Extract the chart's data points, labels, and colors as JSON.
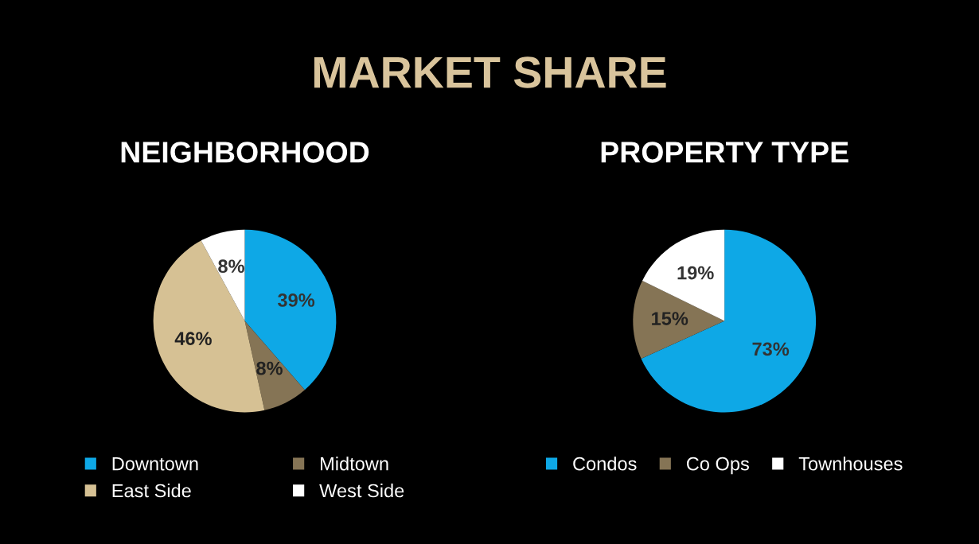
{
  "chart_data": [
    {
      "type": "pie",
      "title": "NEIGHBORHOOD",
      "annotations": [
        "MARKET SHARE"
      ],
      "categories": [
        "Downtown",
        "Midtown",
        "East Side",
        "West Side"
      ],
      "values": [
        39,
        8,
        46,
        8
      ],
      "value_labels": [
        "39%",
        "8%",
        "46%",
        "8%"
      ],
      "colors": [
        "#0ea8e6",
        "#857455",
        "#d6c194",
        "#ffffff"
      ],
      "legend": "bottom"
    },
    {
      "type": "pie",
      "title": "PROPERTY TYPE",
      "categories": [
        "Condos",
        "Co Ops",
        "Townhouses"
      ],
      "values": [
        73,
        15,
        19
      ],
      "value_labels": [
        "73%",
        "15%",
        "19%"
      ],
      "colors": [
        "#0ea8e6",
        "#857455",
        "#ffffff"
      ],
      "legend": "bottom"
    }
  ]
}
